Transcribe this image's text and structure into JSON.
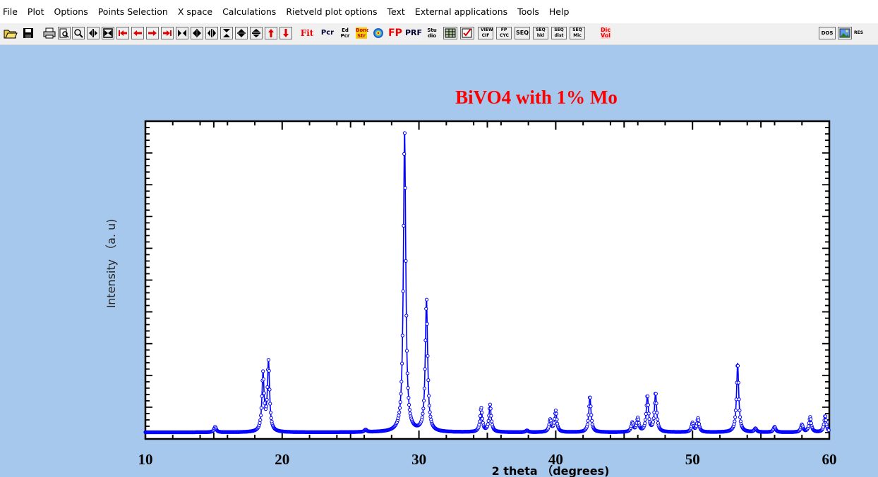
{
  "menu": [
    "File",
    "Plot",
    "Options",
    "Points Selection",
    "X space",
    "Calculations",
    "Rietveld plot options",
    "Text",
    "External applications",
    "Tools",
    "Help"
  ],
  "toolbar": {
    "fit": "Fit",
    "pcr": "Pcr",
    "ed_pcr": "Ed Pcr",
    "bond_str": "Bond Str",
    "fp": "FP",
    "prf": "PRF",
    "studio": "Stu dio",
    "view_cif": "VIEW CIF",
    "fp_cyc": "FP CYC",
    "seq": "SEQ",
    "seq_hkl": "SEQ hkl",
    "seq_dist": "SEQ dist",
    "seq_mic": "SEQ Mic",
    "dic_vol": "Dic Vol",
    "dos": "DOS",
    "res": "RES"
  },
  "chart_data": {
    "type": "scatter",
    "title": "BiVO4 with 1% Mo",
    "xlabel": "2 theta （degrees)",
    "ylabel": "Intensity （a. u)",
    "xlim": [
      10,
      60
    ],
    "ylim": [
      0,
      100
    ],
    "xticks": [
      10,
      20,
      30,
      40,
      50,
      60
    ],
    "series": [
      {
        "color": "#0000ff",
        "peaks": [
          {
            "x": 15.1,
            "height": 1.8
          },
          {
            "x": 18.6,
            "height": 19
          },
          {
            "x": 19.0,
            "height": 23
          },
          {
            "x": 26.1,
            "height": 0.8
          },
          {
            "x": 28.95,
            "height": 100
          },
          {
            "x": 30.55,
            "height": 44
          },
          {
            "x": 34.55,
            "height": 8
          },
          {
            "x": 35.2,
            "height": 9
          },
          {
            "x": 37.9,
            "height": 0.6
          },
          {
            "x": 39.6,
            "height": 4
          },
          {
            "x": 40.0,
            "height": 7
          },
          {
            "x": 42.5,
            "height": 12
          },
          {
            "x": 45.6,
            "height": 3
          },
          {
            "x": 46.0,
            "height": 4.5
          },
          {
            "x": 46.7,
            "height": 12
          },
          {
            "x": 47.3,
            "height": 13
          },
          {
            "x": 50.0,
            "height": 3
          },
          {
            "x": 50.4,
            "height": 4.5
          },
          {
            "x": 53.3,
            "height": 23
          },
          {
            "x": 54.6,
            "height": 1.2
          },
          {
            "x": 56.0,
            "height": 1.8
          },
          {
            "x": 58.0,
            "height": 2.5
          },
          {
            "x": 58.6,
            "height": 5
          },
          {
            "x": 59.7,
            "height": 5.5
          }
        ],
        "background": 0.8
      }
    ]
  },
  "colors": {
    "background": "#a6c8ec",
    "title": "#ff0000",
    "series": "#0000ff"
  }
}
